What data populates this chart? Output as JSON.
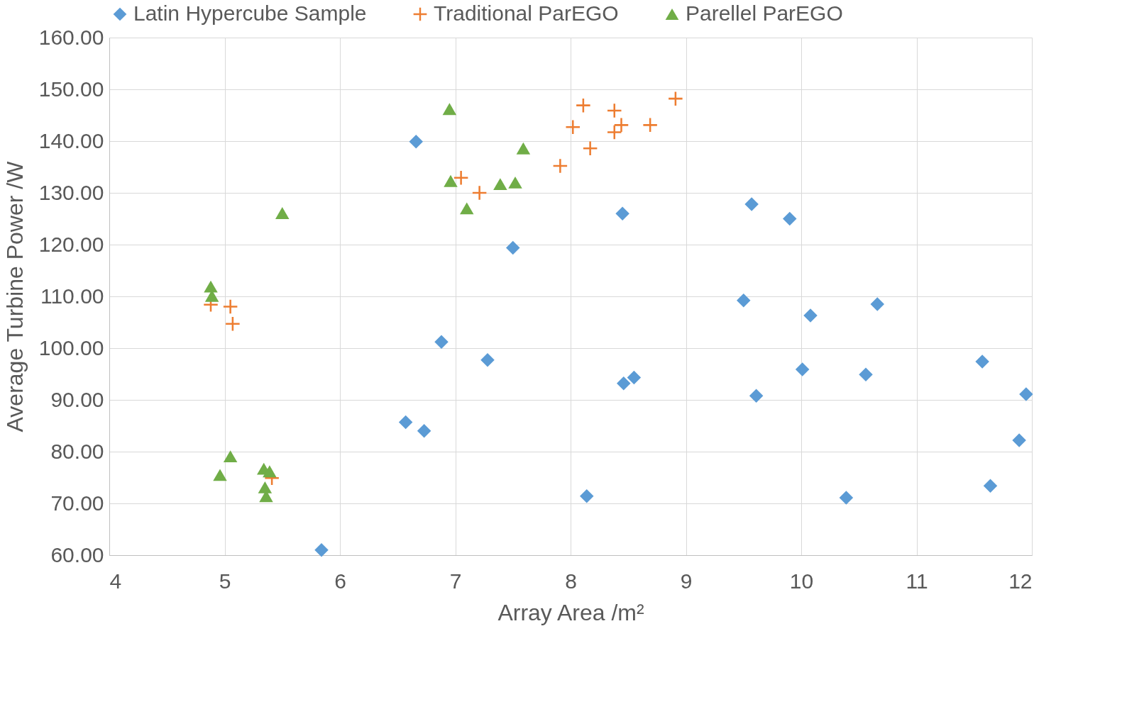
{
  "chart_data": {
    "type": "scatter",
    "xlabel": "Array Area /m²",
    "ylabel": "Average Turbine Power /W",
    "xlim": [
      4,
      12
    ],
    "xticks": [
      4,
      5,
      6,
      7,
      8,
      9,
      10,
      11,
      12
    ],
    "ylim": [
      60,
      160
    ],
    "yticks": [
      {
        "value": 60,
        "label": "60.00"
      },
      {
        "value": 70,
        "label": "70.00"
      },
      {
        "value": 80,
        "label": "80.00"
      },
      {
        "value": 90,
        "label": "90.00"
      },
      {
        "value": 100,
        "label": "100.00"
      },
      {
        "value": 110,
        "label": "110.00"
      },
      {
        "value": 120,
        "label": "120.00"
      },
      {
        "value": 130,
        "label": "130.00"
      },
      {
        "value": 140,
        "label": "140.00"
      },
      {
        "value": 150,
        "label": "150.00"
      },
      {
        "value": 160,
        "label": "160.00"
      }
    ],
    "grid": true,
    "legend": "top",
    "series": [
      {
        "name": "Latin Hypercube Sample",
        "color": "#5b9bd5",
        "marker": "diamond",
        "x": [
          6.66,
          5.84,
          6.57,
          6.73,
          6.88,
          7.28,
          7.5,
          8.14,
          8.45,
          8.46,
          8.55,
          9.5,
          9.57,
          9.61,
          9.9,
          10.01,
          10.08,
          10.39,
          10.56,
          10.66,
          11.57,
          11.64,
          11.89,
          11.95
        ],
        "values": [
          139.9,
          61.0,
          85.7,
          84.0,
          101.2,
          97.7,
          119.4,
          71.4,
          126.0,
          93.2,
          94.3,
          109.2,
          127.8,
          90.8,
          125.0,
          95.9,
          106.3,
          71.1,
          94.9,
          108.5,
          97.4,
          73.4,
          82.2,
          91.1
        ]
      },
      {
        "name": "Traditional ParEGO",
        "color": "#ed7d31",
        "marker": "cross",
        "x": [
          4.88,
          5.05,
          5.07,
          5.41,
          7.05,
          7.21,
          7.91,
          8.02,
          8.11,
          8.17,
          8.38,
          8.38,
          8.44,
          8.69,
          8.91
        ],
        "values": [
          108.4,
          108.0,
          104.7,
          74.9,
          132.9,
          130.0,
          135.2,
          142.7,
          146.9,
          138.6,
          145.9,
          141.7,
          143.1,
          143.1,
          148.2
        ]
      },
      {
        "name": "Parellel ParEGO",
        "color": "#70ad47",
        "marker": "triangle",
        "x": [
          6.95,
          7.59,
          6.96,
          7.39,
          7.52,
          7.1,
          5.5,
          4.88,
          4.89,
          5.05,
          4.96,
          5.34,
          5.39,
          5.35,
          5.36
        ],
        "values": [
          146.2,
          138.6,
          132.3,
          131.7,
          132.0,
          127.0,
          126.1,
          111.9,
          110.1,
          79.1,
          75.5,
          76.7,
          76.2,
          73.1,
          71.4
        ]
      }
    ]
  }
}
